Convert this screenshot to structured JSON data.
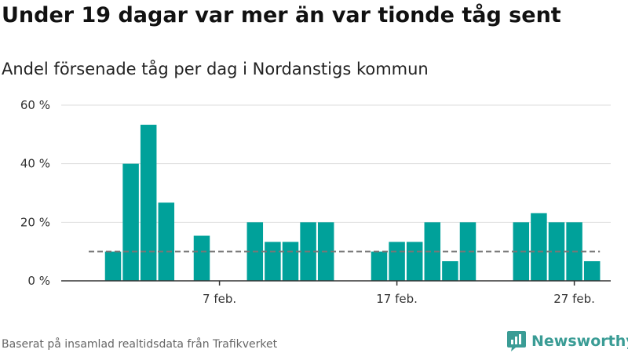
{
  "header": {
    "title": "Under 19 dagar var mer än var tionde tåg sent",
    "subtitle": "Andel försenade tåg per dag i Nordanstigs kommun"
  },
  "footer": {
    "source": "Baserat på insamlad realtidsdata från Trafikverket",
    "brand": "Newsworthy"
  },
  "colors": {
    "bar": "#00a19a",
    "reference_line": "#777777",
    "grid": "#dddddd",
    "axis": "#333333",
    "brand": "#3a9c95"
  },
  "icons": {
    "brand_logo": "newsworthy-logo-icon"
  },
  "chart_data": {
    "type": "bar",
    "unit": "%",
    "x": [
      "2022-02-01",
      "2022-02-02",
      "2022-02-03",
      "2022-02-04",
      "2022-02-05",
      "2022-02-06",
      "2022-02-07",
      "2022-02-08",
      "2022-02-09",
      "2022-02-10",
      "2022-02-11",
      "2022-02-12",
      "2022-02-13",
      "2022-02-14",
      "2022-02-15",
      "2022-02-16",
      "2022-02-17",
      "2022-02-18",
      "2022-02-19",
      "2022-02-20",
      "2022-02-21",
      "2022-02-22",
      "2022-02-23",
      "2022-02-24",
      "2022-02-25",
      "2022-02-26",
      "2022-02-27",
      "2022-02-28"
    ],
    "values": [
      10,
      40,
      53.3,
      26.7,
      0,
      15.4,
      0,
      0,
      20,
      13.3,
      13.3,
      20,
      20,
      0,
      0,
      10,
      13.3,
      13.3,
      20,
      6.7,
      20,
      0,
      0,
      20,
      23.1,
      20,
      20,
      6.7
    ],
    "reference_line": {
      "value": 10,
      "x_from": "2022-02-01",
      "x_to": "2022-02-28"
    },
    "x_ticks": [
      {
        "date": "2022-02-07",
        "label": "7 feb."
      },
      {
        "date": "2022-02-17",
        "label": "17 feb."
      },
      {
        "date": "2022-02-27",
        "label": "27 feb."
      }
    ],
    "y_ticks": [
      {
        "value": 0,
        "label": "0 %"
      },
      {
        "value": 20,
        "label": "20 %"
      },
      {
        "value": 40,
        "label": "40 %"
      },
      {
        "value": 60,
        "label": "60 %"
      }
    ],
    "ylim": [
      0,
      60
    ],
    "grid": true,
    "legend": "none"
  }
}
